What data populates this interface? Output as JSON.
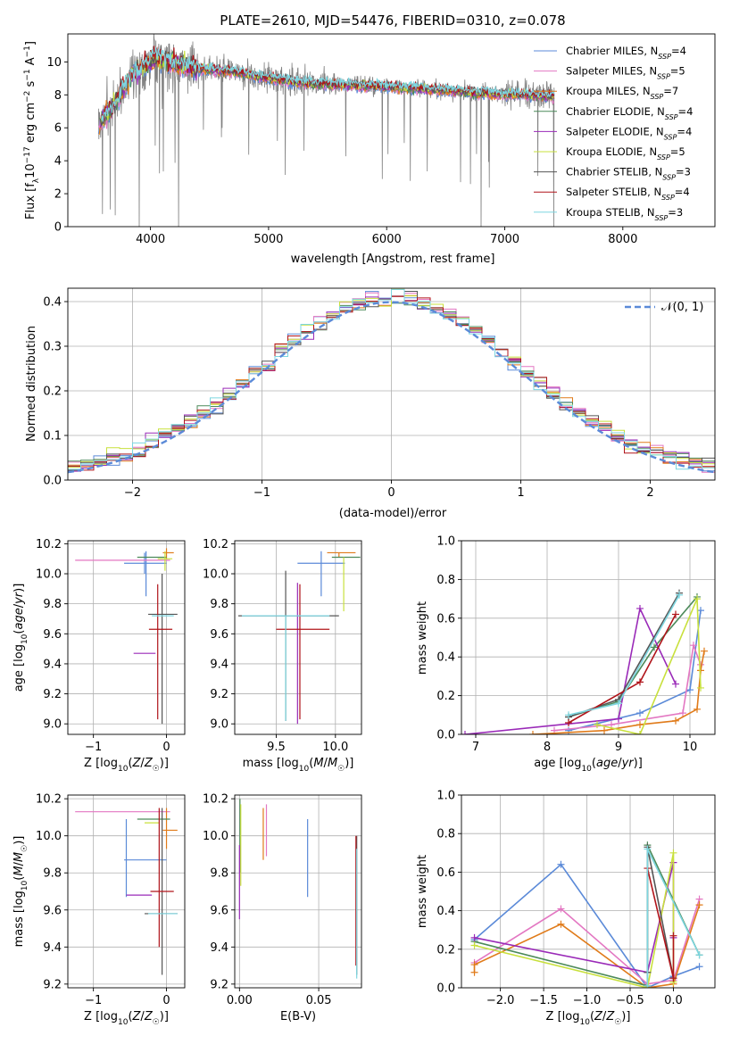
{
  "chart_data": [
    {
      "type": "line",
      "title": "PLATE=2610, MJD=54476, FIBERID=0310, z=0.078",
      "xlabel": "wavelength [Angstrom, rest frame]",
      "ylabel": "Flux [f_λ10^-17 erg cm^-2 s^-1 A^-1]",
      "xlim": [
        3300,
        8780
      ],
      "ylim": [
        0,
        11.7
      ],
      "xticks": [
        "4000",
        "5000",
        "6000",
        "7000",
        "8000"
      ],
      "yticks": [
        "0",
        "2",
        "4",
        "6",
        "8",
        "10"
      ],
      "legend_position": "upper-right",
      "series": [
        {
          "name": "Chabrier MILES, N_SSP=4",
          "color": "#5b8ad8"
        },
        {
          "name": "Salpeter MILES, N_SSP=5",
          "color": "#e377c2"
        },
        {
          "name": "Kroupa MILES, N_SSP=7",
          "color": "#e07b1a"
        },
        {
          "name": "Chabrier ELODIE, N_SSP=4",
          "color": "#4c8a5a"
        },
        {
          "name": "Salpeter ELODIE, N_SSP=4",
          "color": "#9a2ab8"
        },
        {
          "name": "Kroupa ELODIE, N_SSP=5",
          "color": "#c8e03c"
        },
        {
          "name": "Chabrier STELIB, N_SSP=3",
          "color": "#555555"
        },
        {
          "name": "Salpeter STELIB, N_SSP=4",
          "color": "#b0141a"
        },
        {
          "name": "Kroupa STELIB, N_SSP=3",
          "color": "#7dd6e0"
        }
      ],
      "observed_spectrum_color": "#808080",
      "continuum_nodes": {
        "x": [
          3560,
          3700,
          3850,
          3950,
          4050,
          4200,
          4400,
          4700,
          5000,
          5300,
          5600,
          6000,
          6400,
          6600,
          6800,
          7000,
          7200,
          7400
        ],
        "y": [
          6.2,
          7.6,
          9.3,
          9.8,
          10.3,
          9.9,
          9.6,
          9.4,
          9.0,
          8.7,
          8.6,
          8.5,
          8.3,
          8.2,
          8.1,
          8.0,
          8.0,
          7.9
        ]
      }
    },
    {
      "type": "line",
      "xlabel": "(data-model)/error",
      "ylabel": "Normed distribution",
      "xlim": [
        -2.5,
        2.5
      ],
      "ylim": [
        0,
        0.43
      ],
      "xticks": [
        "−2",
        "−1",
        "0",
        "1",
        "2"
      ],
      "yticks": [
        "0.0",
        "0.1",
        "0.2",
        "0.3",
        "0.4"
      ],
      "legend": "N(0, 1)",
      "legend_position": "upper-right",
      "gaussian_color": "#5b8ad8",
      "bin_width": 0.1
    },
    {
      "type": "scatter",
      "xlabel": "Z [log10(Z/Z☉)]",
      "ylabel": "age  [log10(age/yr)]",
      "xlim": [
        -1.35,
        0.25
      ],
      "ylim": [
        8.93,
        10.22
      ],
      "xticks": [
        "−1",
        "0"
      ],
      "yticks": [
        "9.0",
        "9.2",
        "9.4",
        "9.6",
        "9.8",
        "10.0",
        "10.2"
      ],
      "errorbars": [
        {
          "color": "#5b8ad8",
          "x": -0.3,
          "xerr": [
            0.28,
            0.3
          ],
          "y": 10.07,
          "yerr": [
            0.07,
            0.07
          ]
        },
        {
          "color": "#5b8ad8",
          "x": -0.28,
          "xerr": [
            0.0,
            0.0
          ],
          "y": 10.0,
          "yerr": [
            0.15,
            0.15
          ]
        },
        {
          "color": "#e377c2",
          "x": -0.55,
          "xerr": [
            0.7,
            0.6
          ],
          "y": 10.09,
          "yerr": [
            0.0,
            0.0
          ]
        },
        {
          "color": "#e07b1a",
          "x": 0.0,
          "xerr": [
            0.05,
            0.1
          ],
          "y": 10.14,
          "yerr": [
            0.04,
            0.03
          ]
        },
        {
          "color": "#4c8a5a",
          "x": -0.1,
          "xerr": [
            0.3,
            0.1
          ],
          "y": 10.11,
          "yerr": [
            0.0,
            0.0
          ]
        },
        {
          "color": "#9a2ab8",
          "x": -0.15,
          "xerr": [
            0.3,
            0.0
          ],
          "y": 9.47,
          "yerr": [
            0.0,
            0.0
          ]
        },
        {
          "color": "#c8e03c",
          "x": -0.02,
          "xerr": [
            0.1,
            0.1
          ],
          "y": 10.1,
          "yerr": [
            0.08,
            0.05
          ]
        },
        {
          "color": "#555555",
          "x": -0.05,
          "xerr": [
            0.2,
            0.2
          ],
          "y": 9.73,
          "yerr": [
            0.0,
            0.0
          ]
        },
        {
          "color": "#555555",
          "x": -0.06,
          "xerr": [
            0.0,
            0.0
          ],
          "y": 9.6,
          "yerr": [
            0.6,
            0.4
          ]
        },
        {
          "color": "#b0141a",
          "x": -0.12,
          "xerr": [
            0.12,
            0.2
          ],
          "y": 9.63,
          "yerr": [
            0.6,
            0.3
          ]
        },
        {
          "color": "#7dd6e0",
          "x": -0.05,
          "xerr": [
            0.15,
            0.15
          ],
          "y": 9.72,
          "yerr": [
            0.0,
            0.0
          ]
        }
      ]
    },
    {
      "type": "scatter",
      "xlabel": "mass [log10(M/M☉)]",
      "xlim": [
        9.15,
        10.22
      ],
      "ylim": [
        8.93,
        10.22
      ],
      "xticks": [
        "9.5",
        "10.0"
      ],
      "yticks": [
        "9.0",
        "9.2",
        "9.4",
        "9.6",
        "9.8",
        "10.0",
        "10.2"
      ],
      "errorbars": [
        {
          "color": "#5b8ad8",
          "x": 9.88,
          "xerr": [
            0.2,
            0.2
          ],
          "y": 10.07,
          "yerr": [
            0.0,
            0.0
          ]
        },
        {
          "color": "#5b8ad8",
          "x": 9.88,
          "xerr": [
            0.0,
            0.0
          ],
          "y": 10.0,
          "yerr": [
            0.15,
            0.15
          ]
        },
        {
          "color": "#e377c2",
          "x": 10.13,
          "xerr": [
            0.0,
            0.0
          ],
          "y": 10.09,
          "yerr": [
            0.0,
            0.0
          ]
        },
        {
          "color": "#e07b1a",
          "x": 10.03,
          "xerr": [
            0.1,
            0.14
          ],
          "y": 10.14,
          "yerr": [
            0.03,
            0.0
          ]
        },
        {
          "color": "#4c8a5a",
          "x": 10.09,
          "xerr": [
            0.12,
            0.12
          ],
          "y": 10.11,
          "yerr": [
            0.0,
            0.0
          ]
        },
        {
          "color": "#9a2ab8",
          "x": 9.68,
          "xerr": [
            0.0,
            0.0
          ],
          "y": 9.47,
          "yerr": [
            0.47,
            0.47
          ]
        },
        {
          "color": "#c8e03c",
          "x": 10.07,
          "xerr": [
            0.0,
            0.0
          ],
          "y": 9.93,
          "yerr": [
            0.18,
            0.18
          ]
        },
        {
          "color": "#555555",
          "x": 9.58,
          "xerr": [
            0.4,
            0.45
          ],
          "y": 9.72,
          "yerr": [
            0.7,
            0.3
          ]
        },
        {
          "color": "#b0141a",
          "x": 9.7,
          "xerr": [
            0.2,
            0.25
          ],
          "y": 9.63,
          "yerr": [
            0.6,
            0.3
          ]
        },
        {
          "color": "#7dd6e0",
          "x": 9.58,
          "xerr": [
            0.37,
            0.37
          ],
          "y": 9.72,
          "yerr": [
            0.7,
            0.0
          ]
        }
      ]
    },
    {
      "type": "line",
      "xlabel": "age  [log10(age/yr)]",
      "ylabel": "mass weight",
      "xlim": [
        6.8,
        10.35
      ],
      "ylim": [
        0,
        1.0
      ],
      "xticks": [
        "7",
        "8",
        "9",
        "10"
      ],
      "yticks": [
        "0.0",
        "0.2",
        "0.4",
        "0.6",
        "0.8",
        "1.0"
      ],
      "series": [
        {
          "color": "#5b8ad8",
          "x": [
            8.3,
            9.3,
            10.0,
            10.15
          ],
          "y": [
            0.02,
            0.11,
            0.23,
            0.64
          ]
        },
        {
          "color": "#e377c2",
          "x": [
            8.1,
            8.9,
            9.9,
            10.05,
            10.15
          ],
          "y": [
            0.02,
            0.05,
            0.11,
            0.46,
            0.36
          ]
        },
        {
          "color": "#e07b1a",
          "x": [
            7.8,
            8.8,
            9.3,
            9.8,
            10.1,
            10.15,
            10.2
          ],
          "y": [
            0.0,
            0.02,
            0.05,
            0.07,
            0.13,
            0.33,
            0.43
          ]
        },
        {
          "color": "#4c8a5a",
          "x": [
            8.3,
            9.0,
            9.5,
            10.1
          ],
          "y": [
            0.09,
            0.17,
            0.45,
            0.71
          ]
        },
        {
          "color": "#9a2ab8",
          "x": [
            6.85,
            9.0,
            9.3,
            9.8
          ],
          "y": [
            0.0,
            0.08,
            0.65,
            0.26
          ]
        },
        {
          "color": "#c8e03c",
          "x": [
            8.7,
            9.3,
            10.1,
            10.15
          ],
          "y": [
            0.05,
            0.0,
            0.7,
            0.24
          ]
        },
        {
          "color": "#555555",
          "x": [
            8.3,
            9.0,
            9.85
          ],
          "y": [
            0.09,
            0.18,
            0.73
          ]
        },
        {
          "color": "#b0141a",
          "x": [
            8.3,
            9.3,
            9.8
          ],
          "y": [
            0.06,
            0.27,
            0.62
          ]
        },
        {
          "color": "#7dd6e0",
          "x": [
            8.3,
            9.0,
            9.85
          ],
          "y": [
            0.1,
            0.16,
            0.72
          ]
        }
      ]
    },
    {
      "type": "scatter",
      "xlabel": "Z [log10(Z/Z☉)]",
      "ylabel": "mass [log10(M/M☉)]",
      "xlim": [
        -1.35,
        0.25
      ],
      "ylim": [
        9.18,
        10.22
      ],
      "xticks": [
        "−1",
        "0"
      ],
      "yticks": [
        "9.2",
        "9.4",
        "9.6",
        "9.8",
        "10.0",
        "10.2"
      ],
      "errorbars": [
        {
          "color": "#5b8ad8",
          "x": -0.3,
          "xerr": [
            0.28,
            0.3
          ],
          "y": 9.87,
          "yerr": [
            0.0,
            0.0
          ]
        },
        {
          "color": "#5b8ad8",
          "x": -0.55,
          "xerr": [
            0.0,
            0.0
          ],
          "y": 9.87,
          "yerr": [
            0.2,
            0.22
          ]
        },
        {
          "color": "#e377c2",
          "x": -0.55,
          "xerr": [
            0.7,
            0.6
          ],
          "y": 10.13,
          "yerr": [
            0.0,
            0.0
          ]
        },
        {
          "color": "#e07b1a",
          "x": 0.0,
          "xerr": [
            0.05,
            0.15
          ],
          "y": 10.03,
          "yerr": [
            0.1,
            0.12
          ]
        },
        {
          "color": "#4c8a5a",
          "x": -0.1,
          "xerr": [
            0.3,
            0.15
          ],
          "y": 10.09,
          "yerr": [
            0.0,
            0.0
          ]
        },
        {
          "color": "#9a2ab8",
          "x": -0.3,
          "xerr": [
            0.25,
            0.1
          ],
          "y": 9.68,
          "yerr": [
            0.0,
            0.0
          ]
        },
        {
          "color": "#c8e03c",
          "x": -0.2,
          "xerr": [
            0.1,
            0.1
          ],
          "y": 10.07,
          "yerr": [
            0.0,
            0.0
          ]
        },
        {
          "color": "#555555",
          "x": -0.05,
          "xerr": [
            0.25,
            0.2
          ],
          "y": 9.58,
          "yerr": [
            0.0,
            0.0
          ]
        },
        {
          "color": "#555555",
          "x": -0.06,
          "xerr": [
            0.0,
            0.0
          ],
          "y": 9.8,
          "yerr": [
            0.55,
            0.35
          ]
        },
        {
          "color": "#b0141a",
          "x": -0.1,
          "xerr": [
            0.12,
            0.2
          ],
          "y": 9.7,
          "yerr": [
            0.3,
            0.45
          ]
        },
        {
          "color": "#7dd6e0",
          "x": -0.05,
          "xerr": [
            0.2,
            0.2
          ],
          "y": 9.58,
          "yerr": [
            0.0,
            0.0
          ]
        }
      ]
    },
    {
      "type": "scatter",
      "xlabel": "E(B-V)",
      "xlim": [
        -0.003,
        0.077
      ],
      "ylim": [
        9.18,
        10.22
      ],
      "xticks": [
        "0.00",
        "0.05"
      ],
      "yticks": [
        "9.2",
        "9.4",
        "9.6",
        "9.8",
        "10.0",
        "10.2"
      ],
      "errorbars": [
        {
          "color": "#5b8ad8",
          "x": 0.043,
          "xerr": [
            0.0,
            0.0
          ],
          "y": 9.87,
          "yerr": [
            0.2,
            0.22
          ]
        },
        {
          "color": "#e377c2",
          "x": 0.017,
          "xerr": [
            0.0,
            0.0
          ],
          "y": 10.02,
          "yerr": [
            0.13,
            0.15
          ]
        },
        {
          "color": "#e07b1a",
          "x": 0.015,
          "xerr": [
            0.0,
            0.0
          ],
          "y": 10.0,
          "yerr": [
            0.13,
            0.15
          ]
        },
        {
          "color": "#4c8a5a",
          "x": 0.0003,
          "xerr": [
            0.0,
            0.0
          ],
          "y": 10.0,
          "yerr": [
            0.2,
            0.2
          ]
        },
        {
          "color": "#9a2ab8",
          "x": 0.0,
          "xerr": [
            0.0,
            0.0
          ],
          "y": 9.75,
          "yerr": [
            0.2,
            0.2
          ]
        },
        {
          "color": "#c8e03c",
          "x": 0.0008,
          "xerr": [
            0.0,
            0.0
          ],
          "y": 9.95,
          "yerr": [
            0.22,
            0.22
          ]
        },
        {
          "color": "#555555",
          "x": 0.074,
          "xerr": [
            0.0,
            0.0
          ],
          "y": 9.85,
          "yerr": [
            0.6,
            0.15
          ]
        },
        {
          "color": "#b0141a",
          "x": 0.0735,
          "xerr": [
            0.0,
            0.0
          ],
          "y": 9.7,
          "yerr": [
            0.4,
            0.3
          ]
        },
        {
          "color": "#7dd6e0",
          "x": 0.074,
          "xerr": [
            0.0,
            0.0
          ],
          "y": 9.58,
          "yerr": [
            0.35,
            0.35
          ]
        }
      ]
    },
    {
      "type": "line",
      "xlabel": "Z [log10(Z/Z☉)]",
      "ylabel": "mass weight",
      "xlim": [
        -2.45,
        0.48
      ],
      "ylim": [
        0,
        1.0
      ],
      "xticks": [
        "−2.0",
        "−1.5",
        "−1.0",
        "−0.5",
        "0.0"
      ],
      "yticks": [
        "0.0",
        "0.2",
        "0.4",
        "0.6",
        "0.8",
        "1.0"
      ],
      "series": [
        {
          "color": "#5b8ad8",
          "x": [
            -2.3,
            -1.3,
            -0.3,
            0.0,
            0.3
          ],
          "y": [
            0.25,
            0.64,
            0.0,
            0.06,
            0.11
          ]
        },
        {
          "color": "#e377c2",
          "x": [
            -2.3,
            -1.3,
            -0.3,
            0.0,
            0.3
          ],
          "y": [
            0.13,
            0.41,
            0.02,
            0.04,
            0.46
          ]
        },
        {
          "color": "#e07b1a",
          "x": [
            -2.3,
            -2.3,
            -1.3,
            -0.3,
            0.0,
            0.3
          ],
          "y": [
            0.08,
            0.12,
            0.33,
            0.0,
            0.02,
            0.43
          ]
        },
        {
          "color": "#4c8a5a",
          "x": [
            -2.3,
            -0.3,
            -0.3,
            0.3
          ],
          "y": [
            0.24,
            0.01,
            0.74,
            0.17
          ]
        },
        {
          "color": "#9a2ab8",
          "x": [
            -2.3,
            -0.3,
            0.0,
            0.0
          ],
          "y": [
            0.26,
            0.08,
            0.65,
            0.26
          ]
        },
        {
          "color": "#c8e03c",
          "x": [
            -2.3,
            -0.3,
            0.0,
            0.0
          ],
          "y": [
            0.22,
            0.0,
            0.7,
            0.03
          ]
        },
        {
          "color": "#555555",
          "x": [
            -0.3,
            -0.3,
            0.0
          ],
          "y": [
            0.08,
            0.73,
            0.05
          ]
        },
        {
          "color": "#b0141a",
          "x": [
            -0.3,
            0.0,
            0.0
          ],
          "y": [
            0.62,
            0.05,
            0.27
          ]
        },
        {
          "color": "#7dd6e0",
          "x": [
            -0.3,
            -0.3,
            0.3
          ],
          "y": [
            0.01,
            0.72,
            0.17
          ]
        }
      ]
    }
  ]
}
